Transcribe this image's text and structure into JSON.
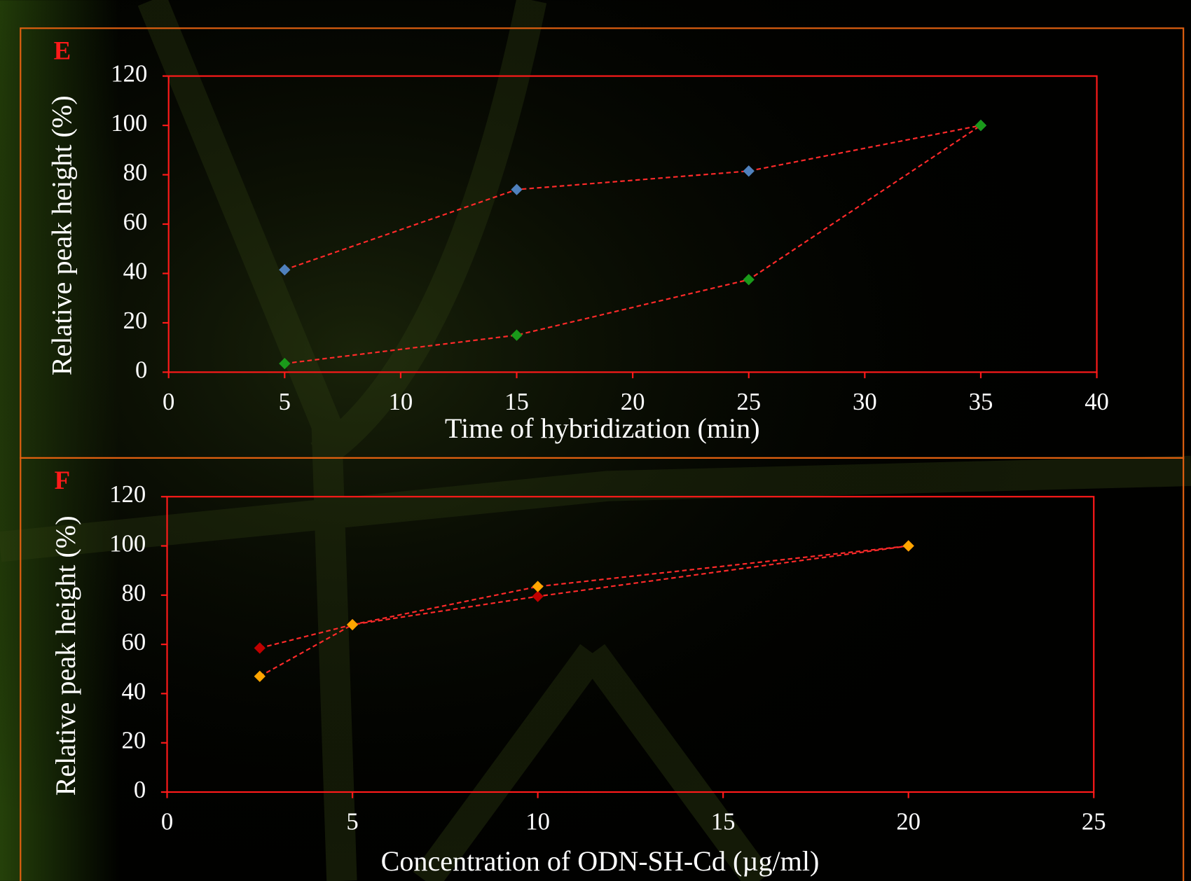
{
  "chart_data": [
    {
      "type": "line",
      "panel_label": "E",
      "xlabel": "Time of hybridization (min)",
      "ylabel": "Relative peak height (%)",
      "x": [
        5,
        15,
        25,
        35
      ],
      "series": [
        {
          "color": "#4f81bd",
          "values": [
            41.5,
            74,
            81.5,
            100
          ]
        },
        {
          "color": "#1a9a1a",
          "values": [
            3.5,
            15,
            37.5,
            100
          ]
        }
      ],
      "line_color": "#ff2a2a",
      "xlim": [
        0,
        40
      ],
      "xticks": [
        0,
        5,
        10,
        15,
        20,
        25,
        30,
        35,
        40
      ],
      "ylim": [
        0,
        120
      ],
      "yticks": [
        0,
        20,
        40,
        60,
        80,
        100,
        120
      ]
    },
    {
      "type": "line",
      "panel_label": "F",
      "xlabel": "Concentration of ODN-SH-Cd (µg/ml)",
      "ylabel": "Relative peak height (%)",
      "x": [
        2.5,
        5,
        10,
        20
      ],
      "series": [
        {
          "color": "#c00000",
          "values": [
            58.5,
            68,
            79.5,
            100
          ]
        },
        {
          "color": "#ffa500",
          "values": [
            47,
            68,
            83.5,
            100
          ]
        }
      ],
      "line_color": "#ff2a2a",
      "xlim": [
        0,
        25
      ],
      "xticks": [
        0,
        5,
        10,
        15,
        20,
        25
      ],
      "ylim": [
        0,
        120
      ],
      "yticks": [
        0,
        20,
        40,
        60,
        80,
        100,
        120
      ]
    }
  ]
}
